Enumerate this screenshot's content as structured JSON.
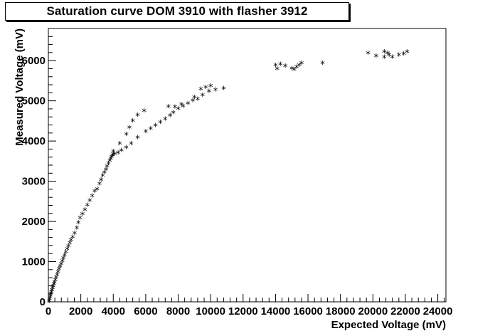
{
  "chart_data": {
    "type": "scatter",
    "title": "Saturation curve DOM 3910 with flasher 3912",
    "xlabel": "Expected Voltage (mV)",
    "ylabel": "Measured Voltage (mV)",
    "xlim": [
      0,
      24500
    ],
    "ylim": [
      0,
      6800
    ],
    "x_ticks": [
      0,
      2000,
      4000,
      6000,
      8000,
      10000,
      12000,
      14000,
      16000,
      18000,
      20000,
      22000,
      24000
    ],
    "y_ticks": [
      0,
      1000,
      2000,
      3000,
      4000,
      5000,
      6000
    ],
    "marker": "*",
    "grid": false,
    "series": [
      {
        "points": [
          [
            50,
            30
          ],
          [
            80,
            80
          ],
          [
            100,
            120
          ],
          [
            130,
            170
          ],
          [
            160,
            220
          ],
          [
            190,
            260
          ],
          [
            220,
            300
          ],
          [
            260,
            350
          ],
          [
            300,
            400
          ],
          [
            340,
            450
          ],
          [
            380,
            500
          ],
          [
            430,
            560
          ],
          [
            480,
            620
          ],
          [
            540,
            690
          ],
          [
            600,
            760
          ],
          [
            660,
            830
          ],
          [
            720,
            890
          ],
          [
            790,
            960
          ],
          [
            860,
            1030
          ],
          [
            930,
            1100
          ],
          [
            1000,
            1170
          ],
          [
            1080,
            1250
          ],
          [
            1160,
            1330
          ],
          [
            1240,
            1400
          ],
          [
            1320,
            1480
          ],
          [
            1400,
            1550
          ],
          [
            1500,
            1620
          ],
          [
            1620,
            1720
          ],
          [
            1750,
            1850
          ],
          [
            1850,
            1980
          ],
          [
            1950,
            2100
          ],
          [
            2100,
            2200
          ],
          [
            2250,
            2300
          ],
          [
            2400,
            2420
          ],
          [
            2550,
            2530
          ],
          [
            2700,
            2650
          ],
          [
            2850,
            2760
          ],
          [
            3000,
            2820
          ],
          [
            3150,
            2950
          ],
          [
            3250,
            3050
          ],
          [
            3350,
            3150
          ],
          [
            3450,
            3230
          ],
          [
            3550,
            3300
          ],
          [
            3620,
            3380
          ],
          [
            3700,
            3450
          ],
          [
            3780,
            3520
          ],
          [
            3850,
            3580
          ],
          [
            3900,
            3620
          ],
          [
            3950,
            3660
          ],
          [
            4000,
            3680
          ],
          [
            4100,
            3690
          ],
          [
            4300,
            3720
          ],
          [
            4500,
            3780
          ],
          [
            4800,
            3850
          ],
          [
            5100,
            3950
          ],
          [
            5500,
            4100
          ],
          [
            6000,
            4250
          ],
          [
            6300,
            4320
          ],
          [
            6600,
            4400
          ],
          [
            6900,
            4480
          ],
          [
            7200,
            4560
          ],
          [
            7500,
            4650
          ],
          [
            7700,
            4720
          ],
          [
            8000,
            4820
          ],
          [
            8300,
            4880
          ],
          [
            8600,
            4950
          ],
          [
            8900,
            5020
          ],
          [
            9200,
            5060
          ],
          [
            9500,
            5150
          ],
          [
            9900,
            5250
          ],
          [
            10300,
            5290
          ],
          [
            10800,
            5320
          ],
          [
            4000,
            3750
          ],
          [
            4400,
            3950
          ],
          [
            4800,
            4180
          ],
          [
            5000,
            4350
          ],
          [
            5200,
            4520
          ],
          [
            5500,
            4660
          ],
          [
            5900,
            4760
          ],
          [
            7400,
            4870
          ],
          [
            7800,
            4860
          ],
          [
            8200,
            4920
          ],
          [
            9000,
            5100
          ],
          [
            9400,
            5300
          ],
          [
            9700,
            5350
          ],
          [
            10000,
            5380
          ],
          [
            14000,
            5900
          ],
          [
            14100,
            5810
          ],
          [
            14300,
            5920
          ],
          [
            14600,
            5880
          ],
          [
            15000,
            5820
          ],
          [
            15150,
            5790
          ],
          [
            15300,
            5850
          ],
          [
            15450,
            5900
          ],
          [
            15600,
            5950
          ],
          [
            16900,
            5950
          ],
          [
            19700,
            6200
          ],
          [
            20200,
            6130
          ],
          [
            20700,
            6100
          ],
          [
            20700,
            6230
          ],
          [
            20900,
            6200
          ],
          [
            21000,
            6150
          ],
          [
            21200,
            6100
          ],
          [
            21600,
            6150
          ],
          [
            21900,
            6180
          ],
          [
            22100,
            6230
          ]
        ]
      }
    ]
  }
}
